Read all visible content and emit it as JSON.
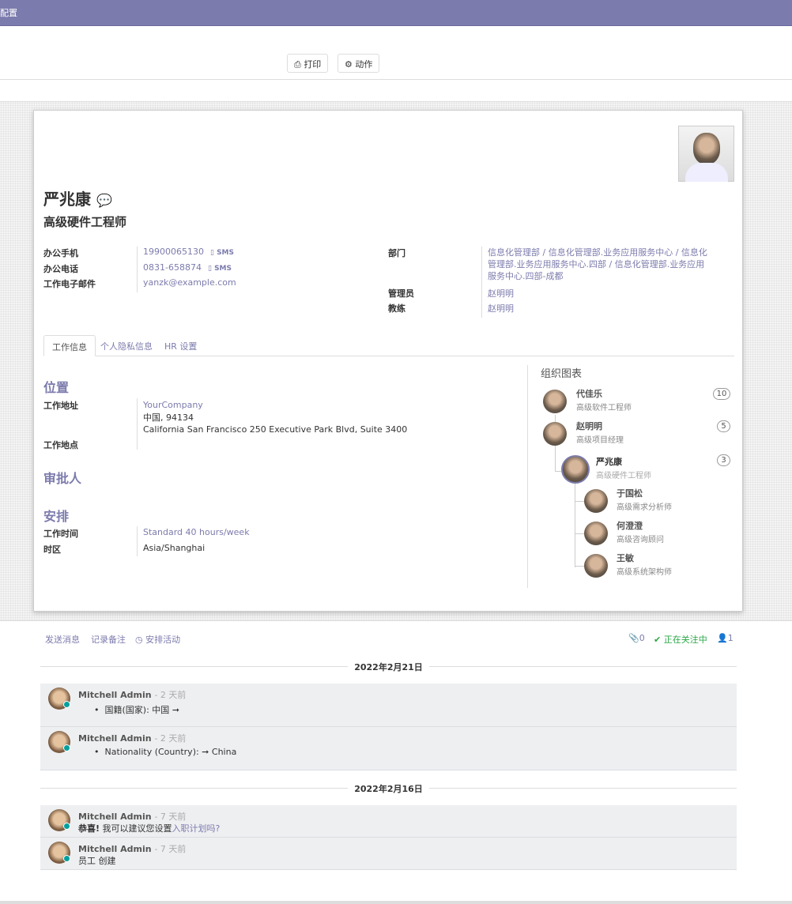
{
  "nav": {
    "title": "配置"
  },
  "toolbar": {
    "print": "打印",
    "action": "动作"
  },
  "employee": {
    "name": "严兆康",
    "job_title": "高级硬件工程师"
  },
  "fields_left": [
    {
      "label": "办公手机",
      "value": "19900065130",
      "sms": "SMS"
    },
    {
      "label": "办公电话",
      "value": "0831-658874",
      "sms": "SMS"
    },
    {
      "label": "工作电子邮件",
      "value": "yanzk@example.com"
    }
  ],
  "fields_right": {
    "department_label": "部门",
    "department": "信息化管理部 / 信息化管理部.业务应用服务中心 / 信息化管理部.业务应用服务中心.四部 / 信息化管理部.业务应用服务中心.四部-成都",
    "manager_label": "管理员",
    "manager": "赵明明",
    "coach_label": "教练",
    "coach": "赵明明"
  },
  "tabs": [
    {
      "label": "工作信息",
      "active": true
    },
    {
      "label": "个人隐私信息"
    },
    {
      "label": "HR 设置"
    }
  ],
  "work": {
    "location_title": "位置",
    "address_label": "工作地址",
    "company": "YourCompany",
    "address_line1": "中国, 94134",
    "address_line2": "California San Francisco 250 Executive Park Blvd, Suite 3400",
    "work_location_label": "工作地点",
    "approvers_title": "审批人",
    "schedule_title": "安排",
    "hours_label": "工作时间",
    "hours": "Standard 40 hours/week",
    "tz_label": "时区",
    "tz": "Asia/Shanghai"
  },
  "org": {
    "title": "组织图表",
    "managers": [
      {
        "name": "代佳乐",
        "job": "高级软件工程师",
        "count": "10"
      },
      {
        "name": "赵明明",
        "job": "高级项目经理",
        "count": "5"
      }
    ],
    "self": {
      "name": "严兆康",
      "job": "高级硬件工程师",
      "count": "3"
    },
    "subordinates": [
      {
        "name": "于国松",
        "job": "高级需求分析师"
      },
      {
        "name": "何澄澄",
        "job": "高级咨询顾问"
      },
      {
        "name": "王敏",
        "job": "高级系统架构师"
      }
    ]
  },
  "chatter": {
    "send": "发送消息",
    "note": "记录备注",
    "activity": "安排活动",
    "attachments": "0",
    "following": "正在关注中",
    "followers": "1",
    "groups": [
      {
        "date": "2022年2月21日",
        "messages": [
          {
            "author": "Mitchell Admin",
            "ago": "- 2 天前",
            "bullet": "国籍(国家): 中国 ➞"
          },
          {
            "author": "Mitchell Admin",
            "ago": "- 2 天前",
            "bullet": "Nationality (Country): ➞ China"
          }
        ]
      },
      {
        "date": "2022年2月16日",
        "messages": [
          {
            "author": "Mitchell Admin",
            "ago": "- 7 天前",
            "bold": "恭喜!",
            "text": "我可以建议您设置",
            "link": "入职计划吗?"
          },
          {
            "author": "Mitchell Admin",
            "ago": "- 7 天前",
            "text": "员工 创建"
          }
        ]
      }
    ]
  },
  "colors": {
    "brand": "#7c7bad",
    "online": "#00a09d",
    "following": "#28a745"
  }
}
